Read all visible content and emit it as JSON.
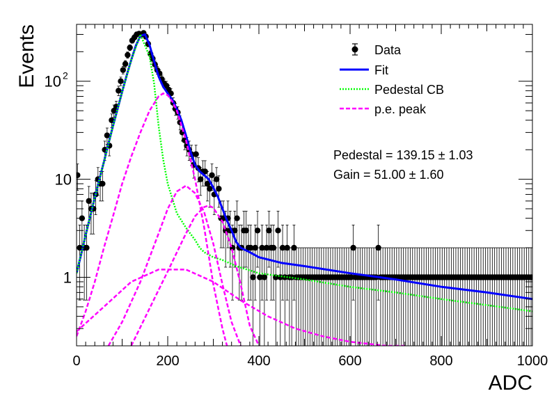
{
  "chart_data": {
    "type": "scatter",
    "xlabel": "ADC",
    "ylabel": "Events",
    "xlim": [
      0,
      1000
    ],
    "ylim": [
      0.2,
      380
    ],
    "yscale": "log",
    "grid": false,
    "legend_position": "top-right",
    "x_ticks": [
      {
        "value": 0,
        "label": "0"
      },
      {
        "value": 200,
        "label": "200"
      },
      {
        "value": 400,
        "label": "400"
      },
      {
        "value": 600,
        "label": "600"
      },
      {
        "value": 800,
        "label": "800"
      },
      {
        "value": 1000,
        "label": "1000"
      }
    ],
    "y_ticks": [
      {
        "value": 1,
        "label": "1"
      },
      {
        "value": 10,
        "label": "10"
      },
      {
        "value": 100,
        "label": "10",
        "exponent": "2"
      }
    ],
    "legend": [
      {
        "label": "Data",
        "style": "marker"
      },
      {
        "label": "Fit",
        "style": "solid",
        "color": "#0000ff"
      },
      {
        "label": "Pedestal CB",
        "style": "dotted",
        "color": "#00ff00"
      },
      {
        "label": "p.e. peak",
        "style": "dashed",
        "color": "#ff00ff"
      }
    ],
    "annotations": [
      "Pedestal = 139.15 ± 1.03",
      "Gain = 51.00 ± 1.60"
    ],
    "series": [
      {
        "name": "Data",
        "style": "points",
        "x": [
          2,
          7,
          12,
          17,
          22,
          27,
          32,
          37,
          42,
          47,
          52,
          57,
          62,
          67,
          72,
          77,
          82,
          87,
          92,
          97,
          102,
          107,
          112,
          117,
          122,
          127,
          132,
          137,
          142,
          147,
          152,
          157,
          162,
          167,
          172,
          177,
          182,
          187,
          192,
          197,
          202,
          207,
          212,
          217,
          222,
          227,
          232,
          237,
          242,
          247,
          252,
          257,
          262,
          267,
          272,
          277,
          282,
          287,
          292,
          297,
          302,
          307,
          312,
          317,
          322,
          327,
          332,
          337,
          342,
          347,
          352,
          357,
          362,
          367,
          372,
          377,
          382,
          387,
          392,
          397,
          402,
          407,
          412,
          417,
          422,
          427,
          432,
          437,
          442,
          447,
          452,
          457,
          462,
          467,
          472,
          477,
          482,
          487,
          492,
          497,
          502,
          507,
          512,
          517,
          522,
          527,
          532,
          537,
          542,
          547,
          552,
          557,
          562,
          567,
          572,
          577,
          582,
          587,
          592,
          597,
          602,
          607,
          612,
          617,
          622,
          627,
          632,
          637,
          642,
          647,
          652,
          657,
          662,
          667,
          672,
          677,
          682,
          687,
          692,
          697,
          702,
          707,
          712,
          717,
          722,
          727,
          732,
          737,
          742,
          747,
          752,
          757,
          762,
          767,
          772,
          777,
          782,
          787,
          792,
          797,
          802,
          807,
          812,
          817,
          822,
          827,
          832,
          837,
          842,
          847,
          852,
          857,
          862,
          867,
          872,
          877,
          882,
          887,
          892,
          897,
          902,
          907,
          912,
          917,
          922,
          927,
          932,
          937,
          942,
          947,
          952,
          957,
          962,
          967,
          972,
          977,
          982,
          987,
          992,
          997
        ],
        "y": [
          11,
          2,
          4,
          2,
          2,
          6,
          5,
          5,
          7,
          10,
          9,
          9,
          20,
          28,
          22,
          40,
          50,
          55,
          80,
          100,
          130,
          150,
          185,
          220,
          260,
          280,
          300,
          305,
          300,
          310,
          285,
          240,
          190,
          170,
          148,
          130,
          120,
          105,
          95,
          90,
          82,
          75,
          60,
          52,
          48,
          38,
          30,
          25,
          22,
          20,
          18,
          14,
          18,
          13,
          10,
          12,
          12,
          9,
          8,
          11,
          7,
          10,
          8,
          4,
          4,
          3,
          4,
          3,
          2,
          3,
          4,
          2,
          2,
          3,
          3,
          2,
          2,
          1,
          2,
          3,
          1,
          2,
          1,
          2,
          3,
          2,
          2,
          1,
          3,
          1,
          2,
          1,
          2,
          1,
          1,
          2,
          1,
          1,
          1,
          1,
          1,
          1,
          1,
          1,
          1,
          1,
          1,
          1,
          1,
          1,
          1,
          1,
          1,
          1,
          1,
          1,
          1,
          1,
          1,
          1,
          1,
          2,
          1,
          1,
          1,
          1,
          1,
          1,
          1,
          1,
          1,
          1,
          2,
          1,
          1,
          1,
          1,
          1,
          1,
          1,
          1,
          1,
          1,
          1,
          1,
          1,
          1,
          1,
          1,
          1,
          1,
          1,
          1,
          1,
          1,
          1,
          1,
          1,
          1,
          1,
          1,
          1,
          1,
          1,
          1,
          1,
          1,
          1,
          1,
          1,
          1,
          1,
          1,
          1,
          1,
          1,
          1,
          1,
          1,
          1,
          1,
          1,
          1,
          1,
          1,
          1,
          1,
          1,
          1,
          1,
          1,
          1,
          1,
          1,
          1,
          1,
          1,
          1,
          1,
          1
        ]
      },
      {
        "name": "Fit",
        "style": "line",
        "color": "#0000ff",
        "x": [
          0,
          10,
          20,
          30,
          40,
          50,
          60,
          70,
          80,
          90,
          100,
          110,
          120,
          130,
          140,
          150,
          160,
          170,
          180,
          190,
          200,
          210,
          220,
          230,
          240,
          250,
          260,
          270,
          280,
          290,
          300,
          310,
          320,
          330,
          340,
          350,
          360,
          380,
          400,
          450,
          500,
          600,
          700,
          800,
          900,
          1000
        ],
        "y": [
          1.1,
          1.7,
          2.7,
          4.2,
          6.5,
          10,
          15,
          23,
          35,
          52,
          78,
          115,
          165,
          230,
          290,
          300,
          235,
          160,
          112,
          88,
          75,
          65,
          52,
          40,
          28,
          19,
          14,
          12,
          11,
          10,
          8.2,
          6.6,
          5,
          3.8,
          3.0,
          2.3,
          2.0,
          1.8,
          1.6,
          1.4,
          1.3,
          1.1,
          0.95,
          0.8,
          0.7,
          0.6
        ]
      },
      {
        "name": "Pedestal CB",
        "style": "dotted",
        "color": "#00ff00",
        "x": [
          0,
          20,
          40,
          60,
          80,
          100,
          120,
          140,
          160,
          170,
          180,
          190,
          200,
          220,
          240,
          260,
          270,
          280,
          300,
          320,
          350,
          400,
          500,
          600,
          700,
          800,
          900,
          1000
        ],
        "y": [
          1.1,
          2.7,
          6.5,
          15,
          35,
          78,
          165,
          300,
          180,
          95,
          35,
          16,
          9,
          4.5,
          3.2,
          2.4,
          2.0,
          1.8,
          1.6,
          1.5,
          1.3,
          1.1,
          0.95,
          0.8,
          0.7,
          0.6,
          0.52,
          0.45
        ]
      },
      {
        "name": "p.e. peak",
        "style": "dashed",
        "color": "#ff00ff",
        "x": [
          0,
          20,
          40,
          60,
          80,
          100,
          120,
          140,
          160,
          180,
          190,
          200,
          210,
          220,
          240,
          260,
          280,
          300,
          320,
          330
        ],
        "y": [
          0.25,
          0.45,
          0.9,
          2,
          4.2,
          9,
          17,
          30,
          50,
          70,
          75,
          72,
          62,
          50,
          25,
          10,
          3.2,
          0.85,
          0.3,
          0.2
        ]
      },
      {
        "name": "p.e. peak",
        "style": "dashed",
        "color": "#ff00ff",
        "x": [
          70,
          100,
          140,
          180,
          200,
          220,
          240,
          260,
          280,
          300,
          320,
          340,
          360
        ],
        "y": [
          0.2,
          0.35,
          0.9,
          2.8,
          5,
          7.5,
          8.6,
          7.2,
          4.6,
          2.2,
          0.85,
          0.35,
          0.2
        ]
      },
      {
        "name": "p.e. peak",
        "style": "dashed",
        "color": "#ff00ff",
        "x": [
          120,
          160,
          200,
          240,
          260,
          280,
          290,
          300,
          320,
          340,
          360,
          380,
          400
        ],
        "y": [
          0.2,
          0.48,
          1.15,
          2.8,
          4.2,
          5.2,
          5.4,
          5.1,
          3.7,
          2.0,
          0.85,
          0.32,
          0.2
        ]
      },
      {
        "name": "p.e. peak",
        "style": "dashed",
        "color": "#ff00ff",
        "x": [
          0,
          60,
          120,
          180,
          240,
          300,
          360,
          420,
          480,
          540,
          600,
          680,
          720
        ],
        "y": [
          0.28,
          0.5,
          0.9,
          1.2,
          1.2,
          0.9,
          0.58,
          0.4,
          0.3,
          0.25,
          0.22,
          0.2,
          0.2
        ]
      }
    ]
  }
}
